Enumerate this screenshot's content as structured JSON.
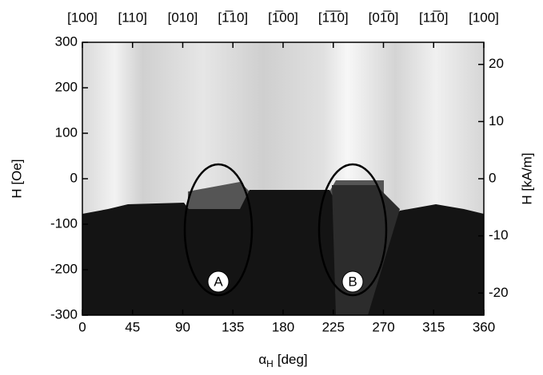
{
  "chart_data": {
    "type": "image",
    "xlim": [
      0,
      360
    ],
    "xticks": [
      0,
      45,
      90,
      135,
      180,
      225,
      270,
      315,
      360
    ],
    "ylim": [
      -300,
      300
    ],
    "yticks": [
      -300,
      -200,
      -100,
      0,
      100,
      200,
      300
    ],
    "y2lim": [
      -23.87,
      23.87
    ],
    "y2ticks": [
      -20,
      -10,
      0,
      10,
      20
    ],
    "top_ticks": [
      {
        "value": 0,
        "label": "[100]"
      },
      {
        "value": 45,
        "label": "[110]"
      },
      {
        "value": 90,
        "label": "[010]"
      },
      {
        "value": 135,
        "label": "[1̅10]"
      },
      {
        "value": 180,
        "label": "[1̅00]"
      },
      {
        "value": 225,
        "label": "[1̅1̅0]"
      },
      {
        "value": 270,
        "label": "[01̅0]"
      },
      {
        "value": 315,
        "label": "[11̅0]"
      },
      {
        "value": 360,
        "label": "[100]"
      }
    ],
    "ylabel": "H [Oe]",
    "y2label": "H [kA/m]",
    "xlabel": {
      "symbol": "α",
      "subscript": "H",
      "unit": "[deg]"
    },
    "annotations": [
      "A",
      "B"
    ]
  }
}
